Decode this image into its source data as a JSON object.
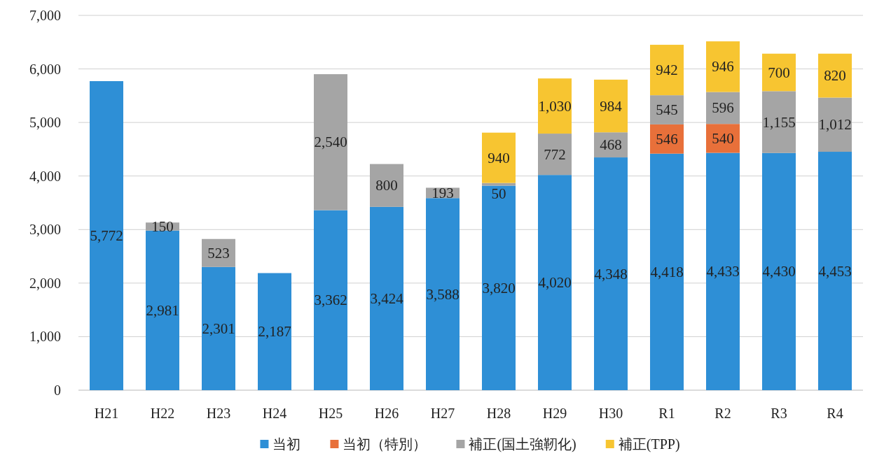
{
  "chart_data": {
    "type": "bar",
    "stacked": true,
    "categories": [
      "H21",
      "H22",
      "H23",
      "H24",
      "H25",
      "H26",
      "H27",
      "H28",
      "H29",
      "H30",
      "R1",
      "R2",
      "R3",
      "R4"
    ],
    "series": [
      {
        "name": "当初",
        "color": "#2e8fd6",
        "values": [
          5772,
          2981,
          2301,
          2187,
          3362,
          3424,
          3588,
          3820,
          4020,
          4348,
          4418,
          4433,
          4430,
          4453
        ],
        "value_labels": [
          "5,772",
          "2,981",
          "2,301",
          "2,187",
          "3,362",
          "3,424",
          "3,588",
          "3,820",
          "4,020",
          "4,348",
          "4,418",
          "4,433",
          "4,430",
          "4,453"
        ]
      },
      {
        "name": "当初（特別）",
        "color": "#e8703a",
        "values": [
          null,
          null,
          null,
          null,
          null,
          null,
          null,
          null,
          null,
          null,
          546,
          540,
          null,
          null
        ],
        "value_labels": [
          null,
          null,
          null,
          null,
          null,
          null,
          null,
          null,
          null,
          null,
          "546",
          "540",
          null,
          null
        ]
      },
      {
        "name": "補正(国土強靭化)",
        "color": "#a5a5a5",
        "values": [
          null,
          150,
          523,
          null,
          2540,
          800,
          193,
          50,
          772,
          468,
          545,
          596,
          1155,
          1012
        ],
        "value_labels": [
          null,
          "150",
          "523",
          null,
          "2,540",
          "800",
          "193",
          "50",
          "772",
          "468",
          "545",
          "596",
          "1,155",
          "1,012"
        ]
      },
      {
        "name": "補正(TPP)",
        "color": "#f7c531",
        "values": [
          null,
          null,
          null,
          null,
          null,
          null,
          null,
          940,
          1030,
          984,
          942,
          946,
          700,
          820
        ],
        "value_labels": [
          null,
          null,
          null,
          null,
          null,
          null,
          null,
          "940",
          "1,030",
          "984",
          "942",
          "946",
          "700",
          "820"
        ]
      }
    ],
    "ylim": [
      0,
      7000
    ],
    "yticks": [
      {
        "value": 0,
        "label": "0"
      },
      {
        "value": 1000,
        "label": "1,000"
      },
      {
        "value": 2000,
        "label": "2,000"
      },
      {
        "value": 3000,
        "label": "3,000"
      },
      {
        "value": 4000,
        "label": "4,000"
      },
      {
        "value": 5000,
        "label": "5,000"
      },
      {
        "value": 6000,
        "label": "6,000"
      },
      {
        "value": 7000,
        "label": "7,000"
      }
    ],
    "grid": "y",
    "legend": "bottom"
  }
}
